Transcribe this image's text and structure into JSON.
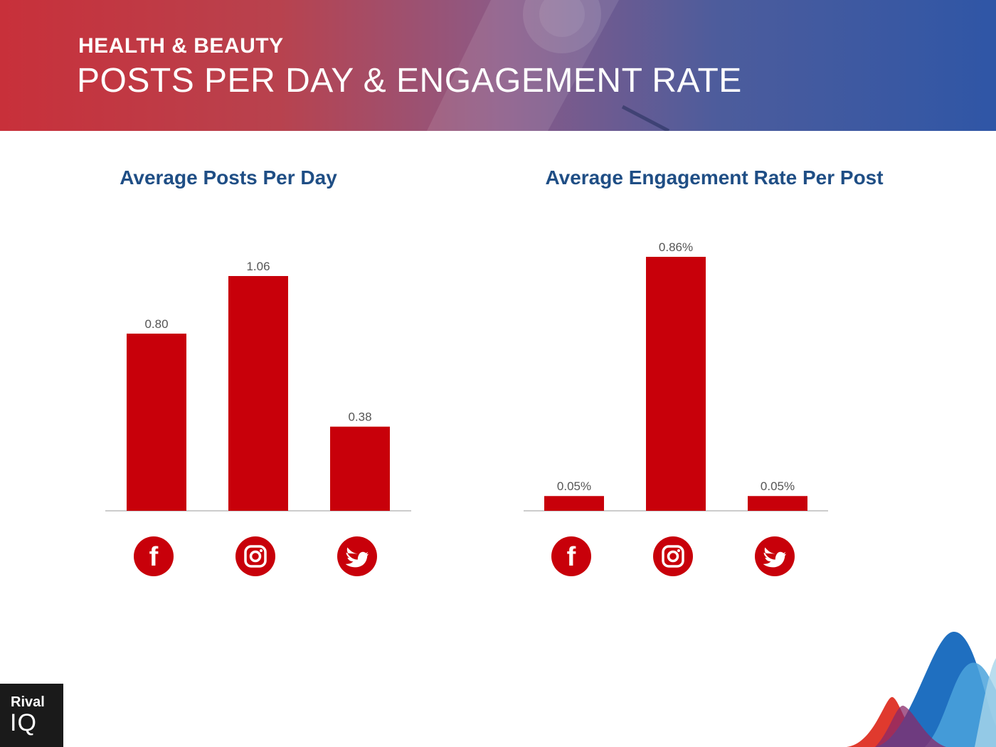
{
  "header": {
    "category": "HEALTH & BEAUTY",
    "title": "POSTS PER DAY & ENGAGEMENT RATE"
  },
  "colors": {
    "bar": "#c8000a",
    "title": "#1f4e85",
    "label": "#555555",
    "axis": "#bbbbbb"
  },
  "chart_data": [
    {
      "type": "bar",
      "title": "Average Posts Per Day",
      "categories": [
        "facebook",
        "instagram",
        "twitter"
      ],
      "category_icons": [
        "facebook-icon",
        "instagram-icon",
        "twitter-icon"
      ],
      "values": [
        0.8,
        1.06,
        0.38
      ],
      "value_labels": [
        "0.80",
        "1.06",
        "0.38"
      ],
      "ylim": [
        0,
        1.06
      ],
      "grid": false
    },
    {
      "type": "bar",
      "title": "Average Engagement Rate Per Post",
      "categories": [
        "facebook",
        "instagram",
        "twitter"
      ],
      "category_icons": [
        "facebook-icon",
        "instagram-icon",
        "twitter-icon"
      ],
      "values": [
        0.05,
        0.86,
        0.05
      ],
      "value_labels": [
        "0.05%",
        "0.86%",
        "0.05%"
      ],
      "ylim": [
        0,
        0.86
      ],
      "grid": false
    }
  ],
  "logo": {
    "line1": "Rival",
    "line2": "IQ"
  }
}
